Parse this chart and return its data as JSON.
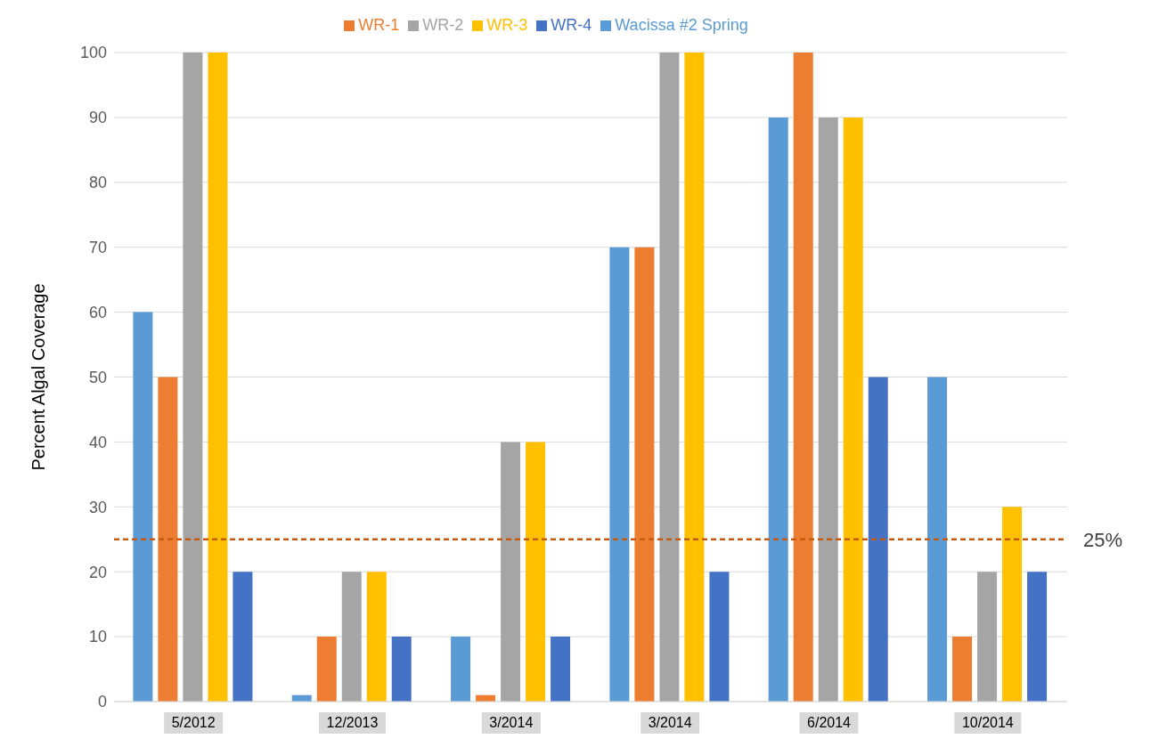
{
  "chart_data": {
    "type": "bar",
    "ylabel": "Percent Algal Coverage",
    "categories": [
      "5/2012",
      "12/2013",
      "3/2014",
      "3/2014",
      "6/2014",
      "10/2014"
    ],
    "series": [
      {
        "name": "Wacissa #2 Spring",
        "color": "#5b9bd5",
        "values": [
          60,
          1,
          10,
          70,
          90,
          50
        ]
      },
      {
        "name": "WR-1",
        "color": "#ed7d31",
        "values": [
          50,
          10,
          1,
          70,
          100,
          10
        ]
      },
      {
        "name": "WR-2",
        "color": "#a5a5a5",
        "values": [
          100,
          20,
          40,
          100,
          90,
          20
        ]
      },
      {
        "name": "WR-3",
        "color": "#ffc000",
        "values": [
          100,
          20,
          40,
          100,
          90,
          30
        ]
      },
      {
        "name": "WR-4",
        "color": "#4472c4",
        "values": [
          20,
          10,
          10,
          20,
          50,
          20
        ]
      }
    ],
    "ylim": [
      0,
      100
    ],
    "yticks": [
      0,
      10,
      20,
      30,
      40,
      50,
      60,
      70,
      80,
      90,
      100
    ],
    "grid": "y",
    "legend": "top",
    "ref_lines": [
      {
        "axis": "y",
        "value": 25,
        "label": "25%",
        "color": "#c55a11",
        "line_style": "dashed"
      }
    ]
  }
}
